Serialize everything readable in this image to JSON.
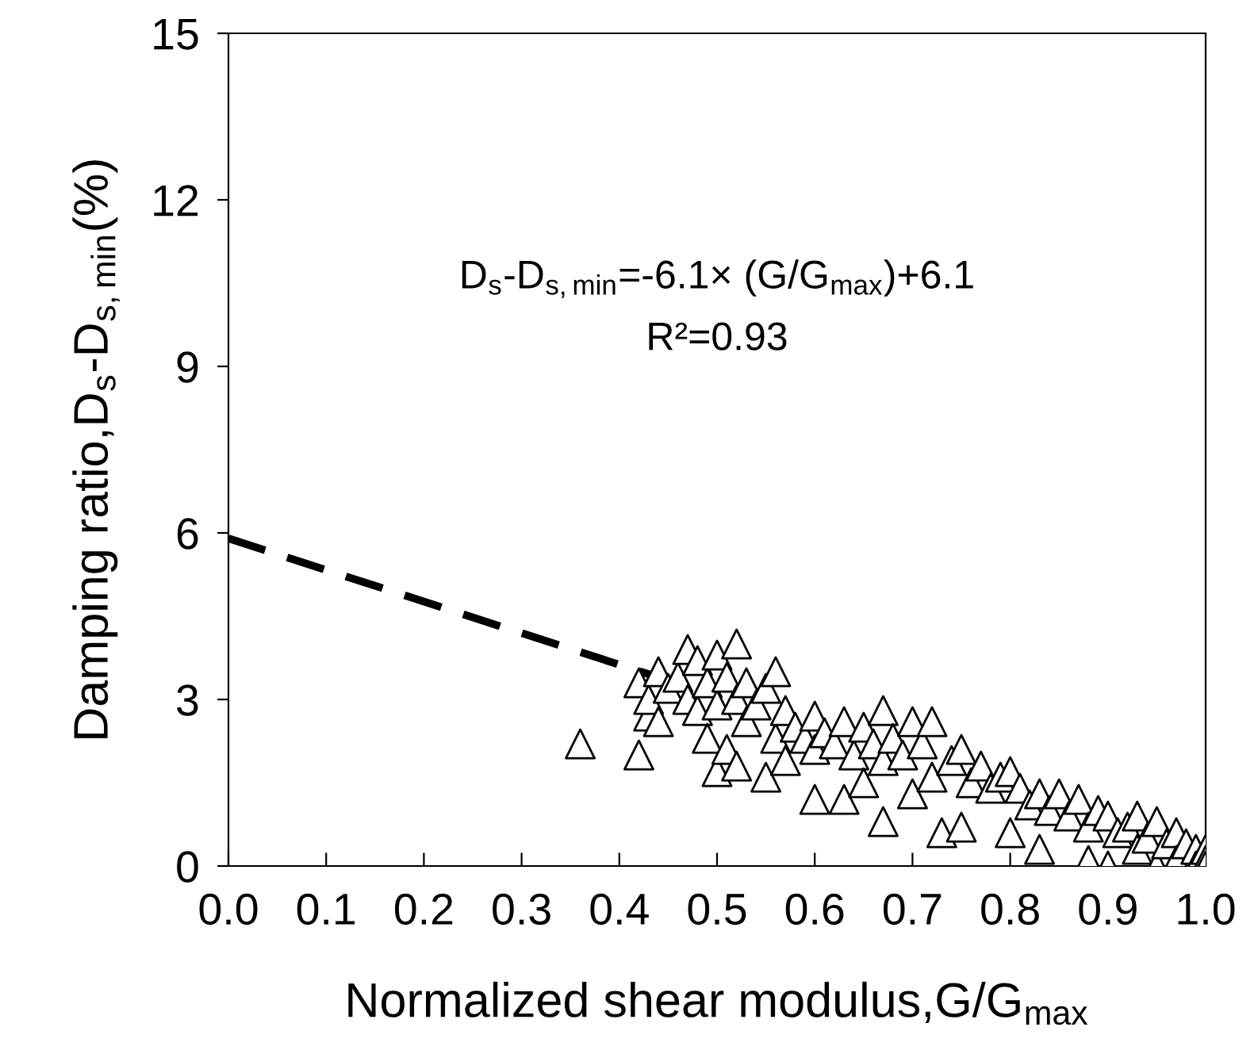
{
  "chart_data": {
    "type": "scatter",
    "xlabel": "Normalized shear modulus,G/G$_{max}$",
    "ylabel": "Damping ratio,D$_{s}$-D$_{s,min}$(%)",
    "xlim": [
      0,
      1
    ],
    "ylim": [
      0,
      15
    ],
    "xticks": [
      {
        "value": 0,
        "label": "0.0"
      },
      0.1,
      0.2,
      0.3,
      0.4,
      0.5,
      0.6,
      0.7,
      0.8,
      0.9,
      {
        "value": 1,
        "label": "1.0"
      }
    ],
    "yticks": [
      0,
      3,
      6,
      9,
      12,
      15
    ],
    "annotations": [
      "D$_{s}$-D$_{s,min}$=-6.1× (G/G$_{max}$)+6.1",
      "R²=0.93"
    ],
    "grid": false,
    "legend": false,
    "series": [
      {
        "marker": "triangle",
        "color": "#000000",
        "x": [
          0.36,
          0.42,
          0.42,
          0.43,
          0.43,
          0.44,
          0.44,
          0.45,
          0.46,
          0.47,
          0.47,
          0.48,
          0.48,
          0.49,
          0.49,
          0.5,
          0.5,
          0.5,
          0.51,
          0.51,
          0.52,
          0.52,
          0.52,
          0.53,
          0.53,
          0.54,
          0.55,
          0.55,
          0.56,
          0.56,
          0.57,
          0.57,
          0.58,
          0.59,
          0.6,
          0.6,
          0.6,
          0.61,
          0.62,
          0.63,
          0.63,
          0.64,
          0.65,
          0.65,
          0.66,
          0.67,
          0.67,
          0.67,
          0.68,
          0.69,
          0.7,
          0.7,
          0.71,
          0.72,
          0.72,
          0.73,
          0.74,
          0.75,
          0.75,
          0.76,
          0.77,
          0.78,
          0.79,
          0.8,
          0.8,
          0.81,
          0.82,
          0.83,
          0.83,
          0.84,
          0.85,
          0.86,
          0.87,
          0.88,
          0.88,
          0.89,
          0.9,
          0.9,
          0.91,
          0.92,
          0.93,
          0.93,
          0.94,
          0.95,
          0.95,
          0.96,
          0.97,
          0.97,
          0.98,
          0.99,
          0.99,
          1.0,
          1.0,
          1.0
        ],
        "values": [
          2.2,
          3.3,
          2.0,
          2.7,
          3.0,
          3.5,
          2.6,
          3.2,
          3.4,
          3.9,
          3.0,
          3.7,
          2.8,
          2.3,
          3.3,
          3.8,
          1.7,
          2.9,
          2.1,
          3.4,
          4.0,
          1.8,
          3.0,
          3.3,
          2.6,
          2.9,
          1.6,
          3.2,
          3.5,
          2.3,
          1.9,
          2.8,
          2.5,
          2.3,
          2.7,
          1.2,
          2.1,
          2.4,
          2.2,
          2.6,
          1.2,
          2.0,
          2.5,
          1.5,
          2.2,
          2.8,
          0.8,
          1.9,
          2.3,
          2.0,
          2.6,
          1.3,
          2.2,
          2.6,
          1.6,
          0.6,
          1.9,
          2.1,
          0.7,
          1.5,
          1.8,
          1.4,
          1.6,
          1.7,
          0.6,
          1.4,
          1.1,
          0.3,
          1.3,
          1.0,
          1.3,
          0.9,
          1.2,
          0.7,
          0.1,
          1.0,
          0.9,
          0.0,
          0.6,
          0.7,
          0.9,
          0.3,
          0.5,
          0.8,
          0.0,
          0.4,
          0.6,
          0.1,
          0.4,
          0.3,
          0.0,
          0.3,
          0.1,
          0.0
        ]
      },
      {
        "type": "line",
        "line_style": "dashed",
        "marker": "none",
        "color": "#000000",
        "x": [
          0.0,
          0.44
        ],
        "values": [
          5.9,
          3.4
        ]
      }
    ]
  }
}
